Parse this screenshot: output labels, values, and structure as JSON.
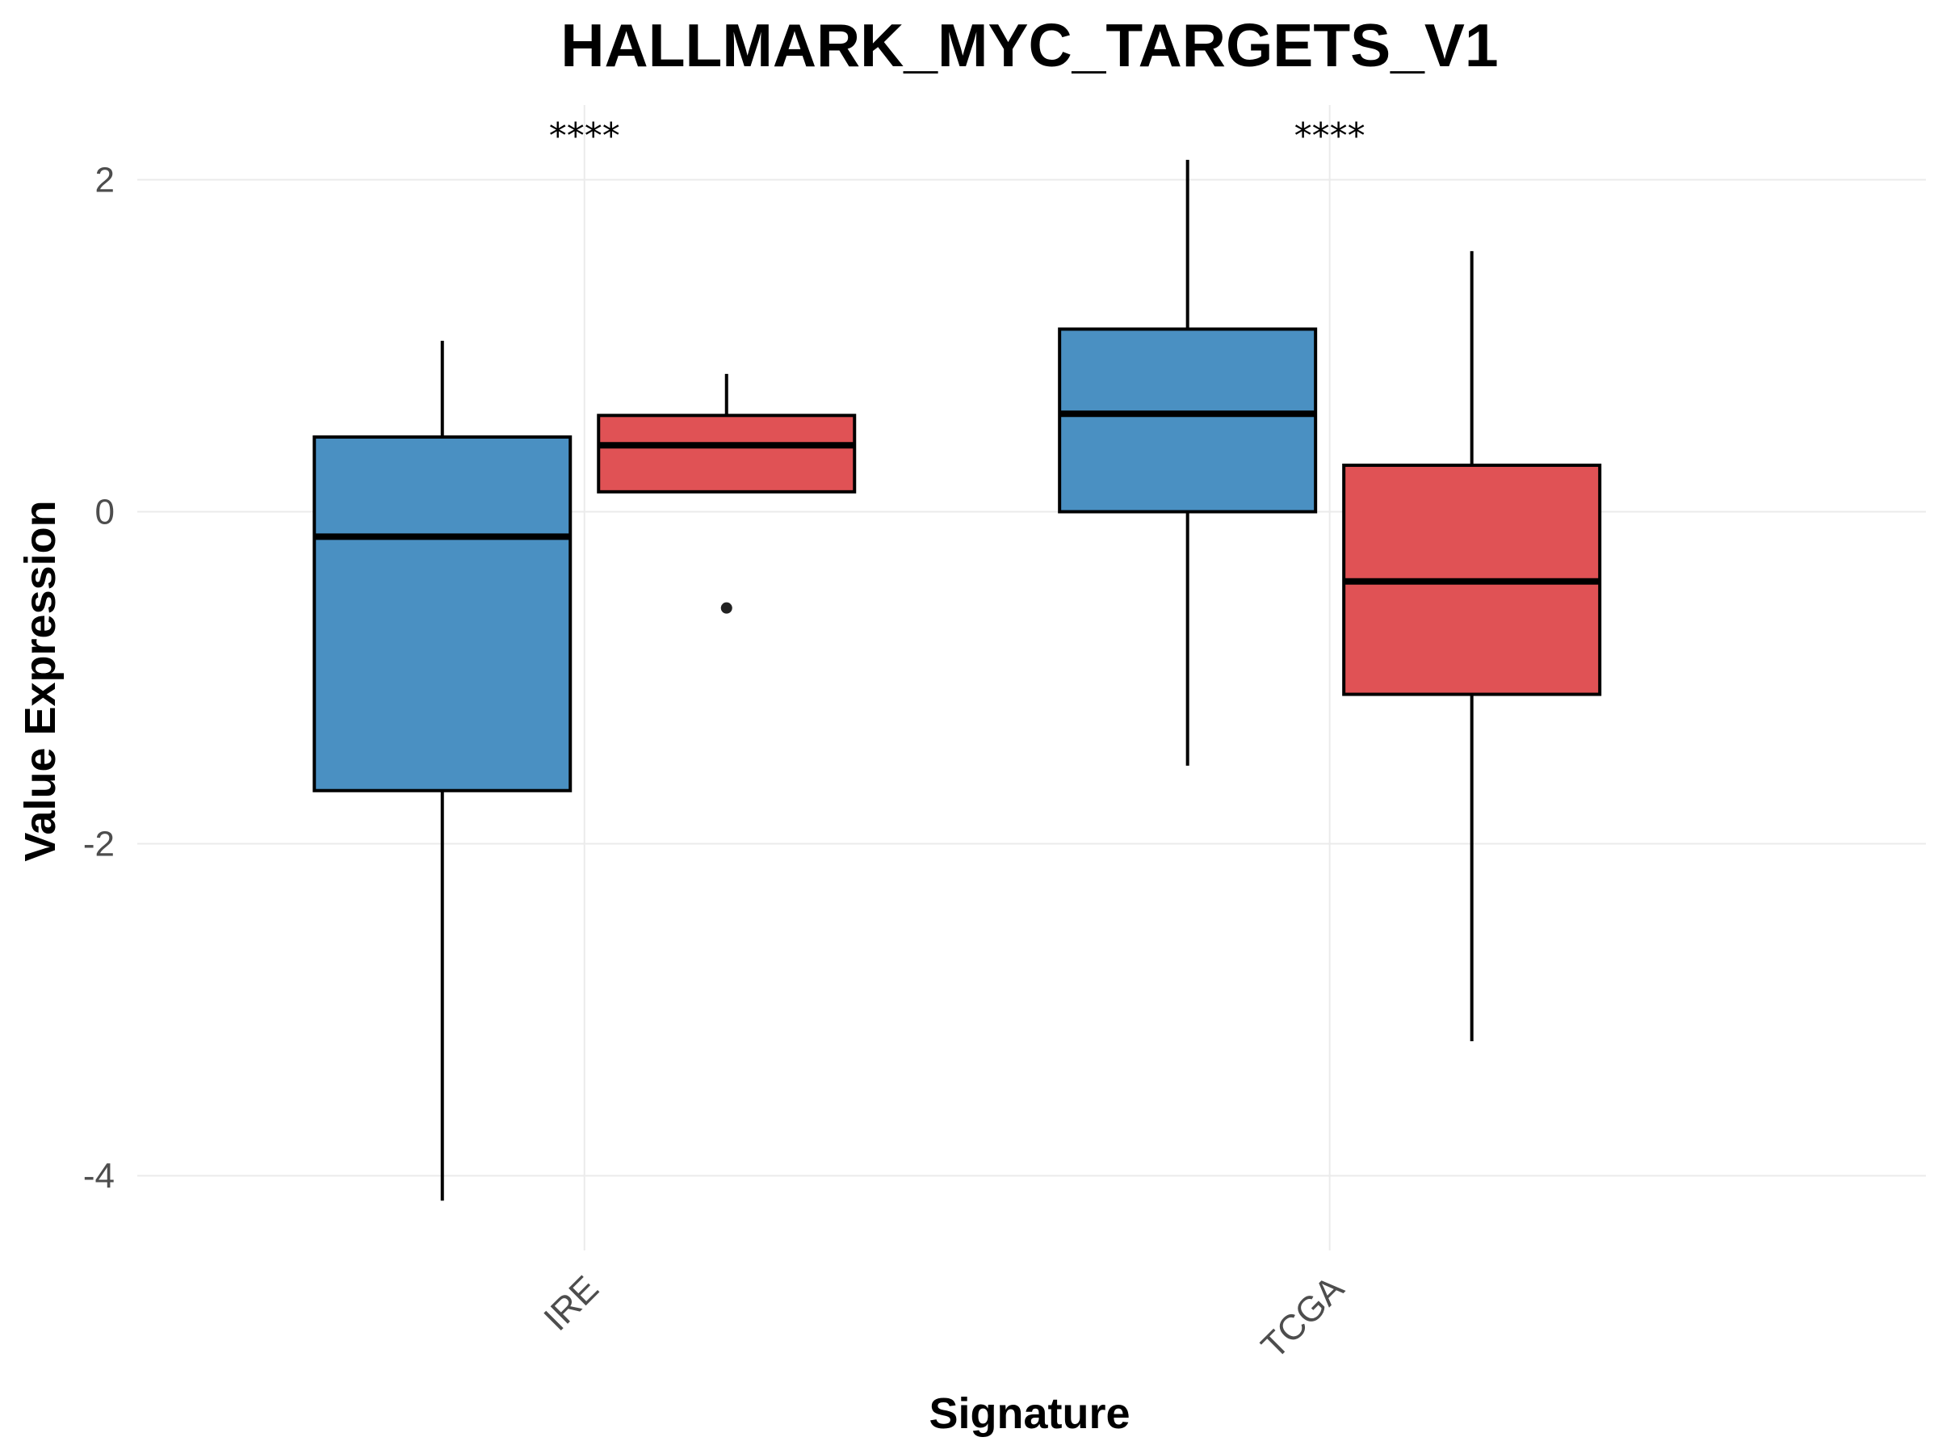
{
  "chart_data": {
    "type": "boxplot",
    "title": "HALLMARK_MYC_TARGETS_V1",
    "xlabel": "Signature",
    "ylabel": "Value Expression",
    "categories": [
      "IRE",
      "TCGA"
    ],
    "ylim": [
      -4.45,
      2.45
    ],
    "yticks": [
      2,
      0,
      -2,
      -4
    ],
    "ytick_labels": [
      "2",
      "0",
      "-2",
      "-4"
    ],
    "grid": true,
    "legend": "none",
    "significance": [
      "****",
      "****"
    ],
    "groups": [
      {
        "color": "#4a90c2"
      },
      {
        "color": "#e05255"
      }
    ],
    "boxes": [
      {
        "category": "IRE",
        "group": 0,
        "whisker_low": -4.15,
        "q1": -1.68,
        "median": -0.15,
        "q3": 0.45,
        "whisker_high": 1.03,
        "outliers": []
      },
      {
        "category": "IRE",
        "group": 1,
        "whisker_low": 0.12,
        "q1": 0.12,
        "median": 0.4,
        "q3": 0.58,
        "whisker_high": 0.83,
        "outliers": [
          -0.58
        ]
      },
      {
        "category": "TCGA",
        "group": 0,
        "whisker_low": -1.53,
        "q1": 0.0,
        "median": 0.59,
        "q3": 1.1,
        "whisker_high": 2.12,
        "outliers": []
      },
      {
        "category": "TCGA",
        "group": 1,
        "whisker_low": -3.19,
        "q1": -1.1,
        "median": -0.42,
        "q3": 0.28,
        "whisker_high": 1.57,
        "outliers": []
      }
    ]
  }
}
